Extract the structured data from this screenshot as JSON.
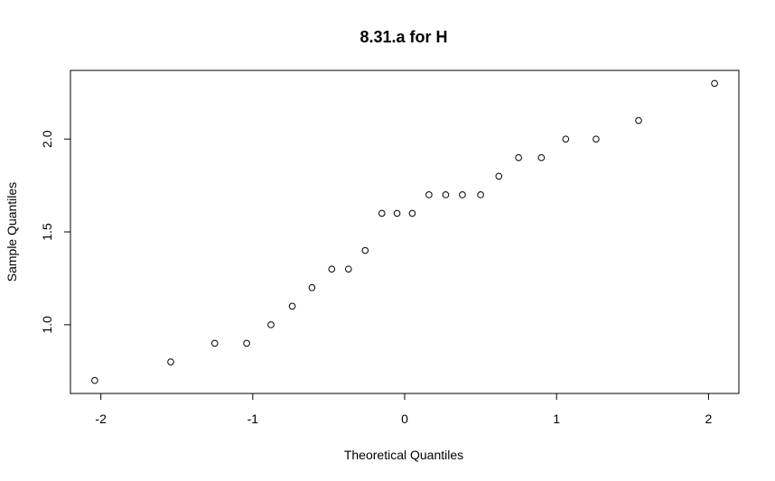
{
  "chart_data": {
    "type": "scatter",
    "title": "8.31.a for H",
    "xlabel": "Theoretical Quantiles",
    "ylabel": "Sample Quantiles",
    "xlim": [
      -2.2,
      2.2
    ],
    "ylim": [
      0.63,
      2.37
    ],
    "xticks": [
      -2,
      -1,
      0,
      1,
      2
    ],
    "xtick_labels": [
      "-2",
      "-1",
      "0",
      "1",
      "2"
    ],
    "yticks": [
      1.0,
      1.5,
      2.0
    ],
    "ytick_labels": [
      "1.0",
      "1.5",
      "2.0"
    ],
    "grid": false,
    "legend": "none",
    "points": [
      {
        "x": -2.04,
        "y": 0.7
      },
      {
        "x": -1.54,
        "y": 0.8
      },
      {
        "x": -1.25,
        "y": 0.9
      },
      {
        "x": -1.04,
        "y": 0.9
      },
      {
        "x": -0.88,
        "y": 1.0
      },
      {
        "x": -0.74,
        "y": 1.1
      },
      {
        "x": -0.61,
        "y": 1.2
      },
      {
        "x": -0.48,
        "y": 1.3
      },
      {
        "x": -0.37,
        "y": 1.3
      },
      {
        "x": -0.26,
        "y": 1.4
      },
      {
        "x": -0.15,
        "y": 1.6
      },
      {
        "x": -0.05,
        "y": 1.6
      },
      {
        "x": 0.05,
        "y": 1.6
      },
      {
        "x": 0.16,
        "y": 1.7
      },
      {
        "x": 0.27,
        "y": 1.7
      },
      {
        "x": 0.38,
        "y": 1.7
      },
      {
        "x": 0.5,
        "y": 1.7
      },
      {
        "x": 0.62,
        "y": 1.8
      },
      {
        "x": 0.75,
        "y": 1.9
      },
      {
        "x": 0.9,
        "y": 1.9
      },
      {
        "x": 1.06,
        "y": 2.0
      },
      {
        "x": 1.26,
        "y": 2.0
      },
      {
        "x": 1.54,
        "y": 2.1
      },
      {
        "x": 2.04,
        "y": 2.3
      }
    ]
  }
}
